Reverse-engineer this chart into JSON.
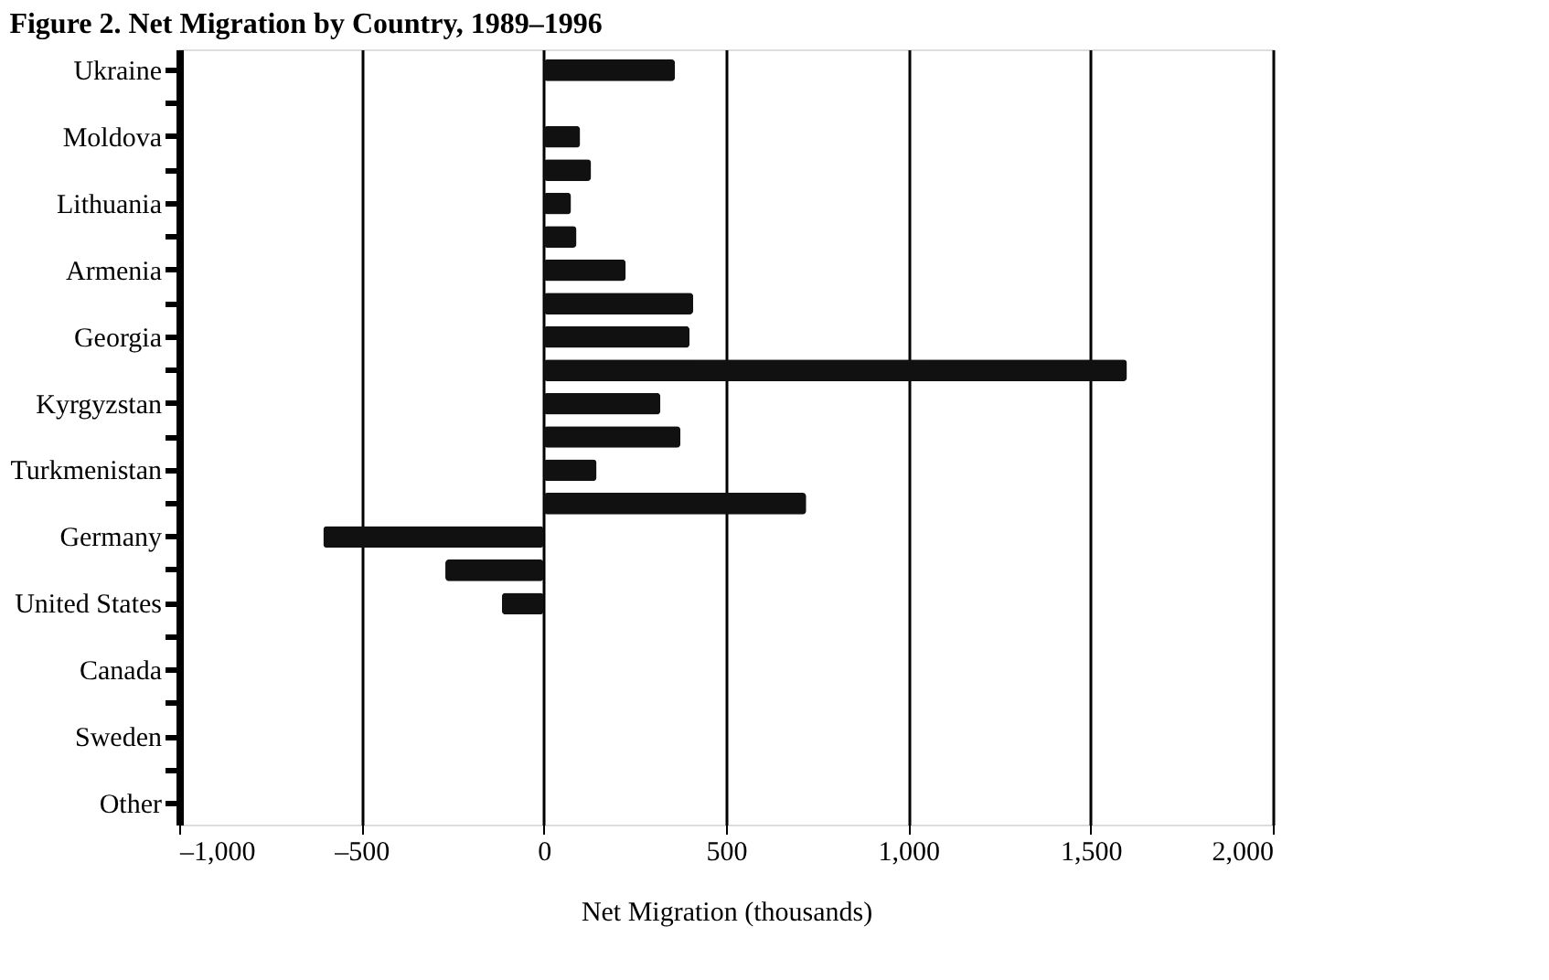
{
  "chart_data": {
    "type": "bar",
    "orientation": "horizontal",
    "title": "Figure 2. Net Migration by Country, 1989–1996",
    "xlabel": "Net Migration (thousands)",
    "categories": [
      "Ukraine",
      null,
      "Moldova",
      null,
      "Lithuania",
      null,
      "Armenia",
      null,
      "Georgia",
      null,
      "Kyrgyzstan",
      null,
      "Turkmenistan",
      null,
      "Germany",
      null,
      "United States",
      null,
      "Canada",
      null,
      "Sweden",
      null,
      "Other"
    ],
    "values": [
      360,
      0,
      100,
      130,
      75,
      90,
      225,
      410,
      400,
      1600,
      320,
      375,
      145,
      720,
      -605,
      -270,
      -115,
      0,
      0,
      0,
      0,
      0,
      0
    ],
    "color": "#111111",
    "xlim": [
      -1000,
      2000
    ],
    "xticks": [
      {
        "value": -1000,
        "label": "–1,000"
      },
      {
        "value": -500,
        "label": "–500"
      },
      0,
      500,
      {
        "value": 1000,
        "label": "1,000"
      },
      {
        "value": 1500,
        "label": "1,500"
      },
      {
        "value": 2000,
        "label": "2,000"
      }
    ],
    "grid": "x"
  }
}
